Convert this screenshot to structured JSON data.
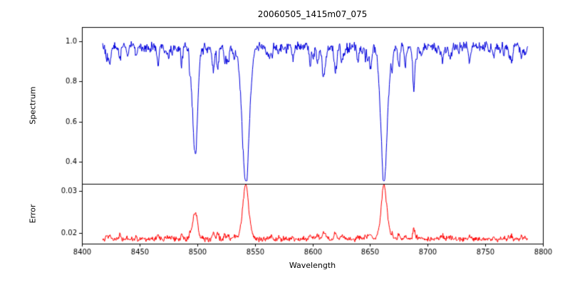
{
  "figure": {
    "title": "20060505_1415m07_075",
    "xlabel": "Wavelength",
    "background": "#ffffff",
    "axis_color": "#000000",
    "tick_font_px": 10
  },
  "x_axis": {
    "label": "Wavelength",
    "ticks": [
      8400,
      8450,
      8500,
      8550,
      8600,
      8650,
      8700,
      8750,
      8800
    ],
    "tick_labels": [
      "8400",
      "8450",
      "8500",
      "8550",
      "8600",
      "8650",
      "8700",
      "8750",
      "8800"
    ]
  },
  "chart_data": [
    {
      "type": "line",
      "name": "spectrum",
      "title": "20060505_1415m07_075",
      "ylabel": "Spectrum",
      "color": "#0000dd",
      "grid": false,
      "legend": "none",
      "xlim": [
        8400,
        8800
      ],
      "ylim": [
        0.29,
        1.07
      ],
      "yticks": [
        0.4,
        0.6,
        0.8,
        1.0
      ],
      "ytick_labels": [
        "0.4",
        "0.6",
        "0.8",
        "1.0"
      ],
      "x_start": 8418,
      "x_end": 8787,
      "x_step": 0.4,
      "continuum": 0.975,
      "noise_amplitude": 0.028,
      "absorption_lines": [
        {
          "center": 8424.0,
          "depth": 0.09,
          "sigma": 0.8
        },
        {
          "center": 8433.0,
          "depth": 0.07,
          "sigma": 0.7
        },
        {
          "center": 8447.0,
          "depth": 0.06,
          "sigma": 0.7
        },
        {
          "center": 8466.0,
          "depth": 0.09,
          "sigma": 0.9
        },
        {
          "center": 8498.0,
          "depth": 0.5,
          "sigma": 2.2
        },
        {
          "center": 8514.0,
          "depth": 0.12,
          "sigma": 0.9
        },
        {
          "center": 8518.0,
          "depth": 0.08,
          "sigma": 0.8
        },
        {
          "center": 8542.1,
          "depth": 0.65,
          "sigma": 3.2
        },
        {
          "center": 8583.0,
          "depth": 0.06,
          "sigma": 0.8
        },
        {
          "center": 8598.0,
          "depth": 0.07,
          "sigma": 0.8
        },
        {
          "center": 8611.0,
          "depth": 0.08,
          "sigma": 0.8
        },
        {
          "center": 8621.0,
          "depth": 0.07,
          "sigma": 0.8
        },
        {
          "center": 8648.0,
          "depth": 0.06,
          "sigma": 0.8
        },
        {
          "center": 8662.1,
          "depth": 0.64,
          "sigma": 2.8
        },
        {
          "center": 8675.0,
          "depth": 0.1,
          "sigma": 0.9
        },
        {
          "center": 8688.0,
          "depth": 0.21,
          "sigma": 1.0
        },
        {
          "center": 8713.0,
          "depth": 0.07,
          "sigma": 0.8
        },
        {
          "center": 8736.0,
          "depth": 0.07,
          "sigma": 0.8
        },
        {
          "center": 8757.0,
          "depth": 0.06,
          "sigma": 0.8
        },
        {
          "center": 8773.0,
          "depth": 0.07,
          "sigma": 0.8
        }
      ],
      "random_microlines": {
        "count": 90,
        "min_depth": 0.015,
        "max_depth": 0.1,
        "min_sigma": 0.3,
        "max_sigma": 1.2,
        "seed": 42
      }
    },
    {
      "type": "line",
      "name": "error",
      "ylabel": "Error",
      "color": "#ff0000",
      "grid": false,
      "legend": "none",
      "xlim": [
        8400,
        8800
      ],
      "ylim": [
        0.0175,
        0.0317
      ],
      "yticks": [
        0.02,
        0.03
      ],
      "ytick_labels": [
        "0.02",
        "0.03"
      ],
      "baseline": 0.0185,
      "noise_amplitude": 0.0007,
      "line_coupling": 0.012,
      "extra_peaks": [
        {
          "center": 8542.1,
          "height": 0.0047,
          "sigma": 2.0
        },
        {
          "center": 8662.1,
          "height": 0.0047,
          "sigma": 2.0
        }
      ],
      "main_peak_values": {
        "8498": 0.025,
        "8542": 0.031,
        "8662": 0.031
      }
    }
  ]
}
